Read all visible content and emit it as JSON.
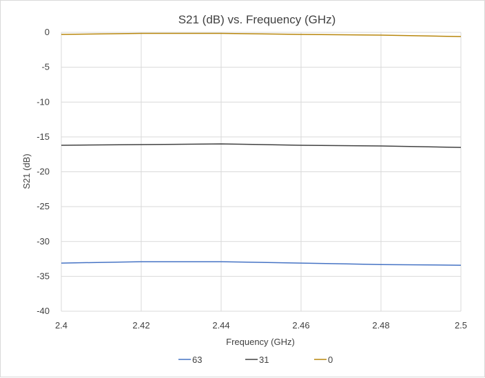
{
  "chart_data": {
    "type": "line",
    "title": "S21 (dB) vs. Frequency (GHz)",
    "xlabel": "Frequency (GHz)",
    "ylabel": "S21 (dB)",
    "xlim": [
      2.4,
      2.5
    ],
    "ylim": [
      -40,
      0
    ],
    "x_ticks": [
      "2.4",
      "2.42",
      "2.44",
      "2.46",
      "2.48",
      "2.5"
    ],
    "x_tick_values": [
      2.4,
      2.42,
      2.44,
      2.46,
      2.48,
      2.5
    ],
    "y_ticks": [
      "0",
      "-5",
      "-10",
      "-15",
      "-20",
      "-25",
      "-30",
      "-35",
      "-40"
    ],
    "y_tick_values": [
      0,
      -5,
      -10,
      -15,
      -20,
      -25,
      -30,
      -35,
      -40
    ],
    "grid": true,
    "legend_position": "bottom",
    "x": [
      2.4,
      2.42,
      2.44,
      2.46,
      2.48,
      2.5
    ],
    "series": [
      {
        "name": "63",
        "color": "#4472c4",
        "values": [
          -33.1,
          -32.9,
          -32.9,
          -33.1,
          -33.3,
          -33.4
        ]
      },
      {
        "name": "31",
        "color": "#404040",
        "values": [
          -16.2,
          -16.1,
          -16.0,
          -16.2,
          -16.3,
          -16.5
        ]
      },
      {
        "name": "0",
        "color": "#b8860b",
        "values": [
          -0.3,
          -0.15,
          -0.15,
          -0.3,
          -0.4,
          -0.6
        ]
      }
    ]
  }
}
